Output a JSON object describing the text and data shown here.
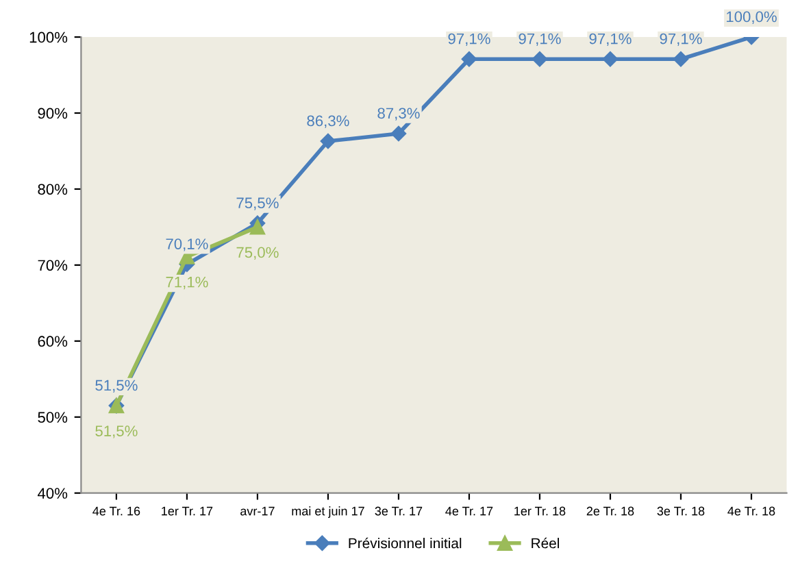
{
  "chart_data": {
    "type": "line",
    "categories": [
      "4e Tr. 16",
      "1er Tr. 17",
      "avr-17",
      "mai et juin 17",
      "3e Tr. 17",
      "4e Tr. 17",
      "1er Tr. 18",
      "2e Tr. 18",
      "3e Tr. 18",
      "4e Tr. 18"
    ],
    "series": [
      {
        "name": "Prévisionnel initial",
        "color": "#4a7ebb",
        "marker": "diamond",
        "values": [
          51.5,
          70.1,
          75.5,
          86.3,
          87.3,
          97.1,
          97.1,
          97.1,
          97.1,
          100.0
        ],
        "value_labels": [
          "51,5%",
          "70,1%",
          "75,5%",
          "86,3%",
          "87,3%",
          "97,1%",
          "97,1%",
          "97,1%",
          "97,1%",
          "100,0%"
        ]
      },
      {
        "name": "Réel",
        "color": "#9bbb59",
        "marker": "triangle",
        "values": [
          51.5,
          71.1,
          75.0,
          null,
          null,
          null,
          null,
          null,
          null,
          null
        ],
        "value_labels": [
          "51,5%",
          "71,1%",
          "75,0%",
          null,
          null,
          null,
          null,
          null,
          null,
          null
        ]
      }
    ],
    "ylim": [
      40,
      100
    ],
    "yticks": [
      {
        "value": 40,
        "label": "40%"
      },
      {
        "value": 50,
        "label": "50%"
      },
      {
        "value": 60,
        "label": "60%"
      },
      {
        "value": 70,
        "label": "70%"
      },
      {
        "value": 80,
        "label": "80%"
      },
      {
        "value": 90,
        "label": "90%"
      },
      {
        "value": 100,
        "label": "100%"
      }
    ],
    "grid": false,
    "legend": "bottom"
  }
}
